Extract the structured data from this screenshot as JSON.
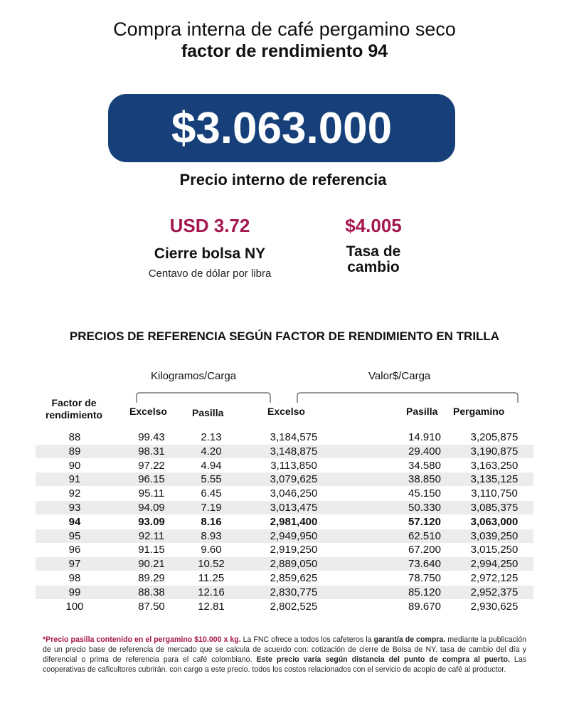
{
  "header": {
    "title_line1": "Compra interna de café pergamino seco",
    "title_line2": "factor de rendimiento 94"
  },
  "price": {
    "value": "$3.063.000",
    "label": "Precio interno de referencia"
  },
  "indicators": [
    {
      "value": "USD 3.72",
      "label": "Cierre bolsa NY",
      "note": "Centavo de dólar por libra"
    },
    {
      "value": "$4.005",
      "label": "Tasa de cambio"
    }
  ],
  "table": {
    "title": "PRECIOS DE REFERENCIA SEGÚN FACTOR DE RENDIMIENTO EN TRILLA",
    "groups": [
      "Kilogramos/Carga",
      "Valor$/Carga"
    ],
    "columns": [
      "Factor de rendimiento",
      "Excelso",
      "Pasilla",
      "Excelso",
      "Pasilla",
      "Pergamino"
    ],
    "rows": [
      [
        "88",
        "99.43",
        "2.13",
        "3,184,575",
        "14.910",
        "3,205,875"
      ],
      [
        "89",
        "98.31",
        "4.20",
        "3,148,875",
        "29.400",
        "3,190,875"
      ],
      [
        "90",
        "97.22",
        "4.94",
        "3,113,850",
        "34.580",
        "3,163,250"
      ],
      [
        "91",
        "96.15",
        "5.55",
        "3,079,625",
        "38.850",
        "3,135,125"
      ],
      [
        "92",
        "95.11",
        "6.45",
        "3,046,250",
        "45.150",
        "3,110,750"
      ],
      [
        "93",
        "94.09",
        "7.19",
        "3,013,475",
        "50.330",
        "3,085,375"
      ],
      [
        "94",
        "93.09",
        "8.16",
        "2,981,400",
        "57.120",
        "3,063,000"
      ],
      [
        "95",
        "92.11",
        "8.93",
        "2,949,950",
        "62.510",
        "3,039,250"
      ],
      [
        "96",
        "91.15",
        "9.60",
        "2,919,250",
        "67.200",
        "3,015,250"
      ],
      [
        "97",
        "90.21",
        "10.52",
        "2,889,050",
        "73.640",
        "2,994,250"
      ],
      [
        "98",
        "89.29",
        "11.25",
        "2,859,625",
        "78.750",
        "2,972,125"
      ],
      [
        "99",
        "88.38",
        "12.16",
        "2,830,775",
        "85.120",
        "2,952,375"
      ],
      [
        "100",
        "87.50",
        "12.81",
        "2,802,525",
        "89.670",
        "2,930,625"
      ]
    ]
  },
  "footnote": [
    "*Precio pasilla contenido en el pergamino $10.000 x kg.",
    " La FNC ofrece a todos los cafeteros la ",
    "garantía de compra.",
    " mediante la publicación de un precio base de referencia de mercado que se calcula de acuerdo con: cotización de cierre de Bolsa de NY. tasa de cambio del día y diferencial o prima de referencia para el café colombiano. ",
    "Este precio varía según distancia del punto de compra al puerto.",
    " Las cooperativas de caficultores cubrirán. con cargo a este precio. todos los costos relacionados con el servicio de acopio de café al productor."
  ]
}
